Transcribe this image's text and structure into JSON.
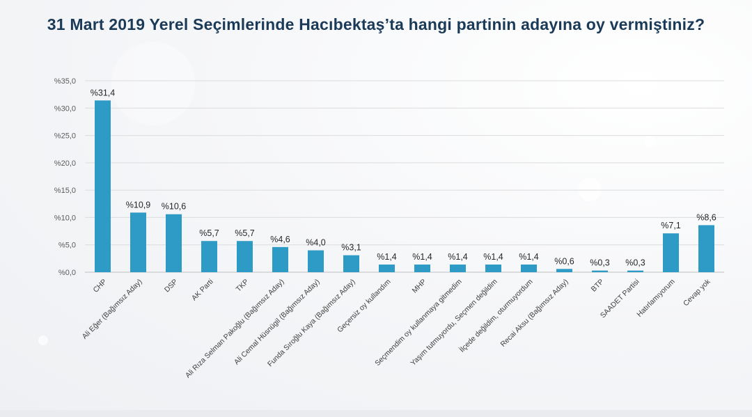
{
  "title": "31 Mart 2019 Yerel Seçimlerinde Hacıbektaş’ta hangi partinin adayına oy vermiştiniz?",
  "chart_data": {
    "type": "bar",
    "title": "31 Mart 2019 Yerel Seçimlerinde Hacıbektaş’ta hangi partinin adayına oy vermiştiniz?",
    "categories": [
      "CHP",
      "Ali Eğer (Bağımsız Aday)",
      "DSP",
      "AK Parti",
      "TKP",
      "Ali Rıza Selman Pakoğlu (Bağımsız Aday)",
      "Ali Cemal Hüsnügil (Bağımsız Aday)",
      "Funda Sıroğlu Kaya (Bağımsız Aday)",
      "Geçersiz oy kullandım",
      "MHP",
      "Seçmendim oy kullanmaya gitmedim",
      "Yaşım tutmuyordu, Seçmen değildim",
      "İlçede değildim, oturmuyordum",
      "Recai Aksu (Bağımsız Aday)",
      "BTP",
      "SAADET Partisi",
      "Hatırlamıyorum",
      "Cevap yok"
    ],
    "values": [
      31.4,
      10.9,
      10.6,
      5.7,
      5.7,
      4.6,
      4.0,
      3.1,
      1.4,
      1.4,
      1.4,
      1.4,
      1.4,
      0.6,
      0.3,
      0.3,
      7.1,
      8.6
    ],
    "value_labels": [
      "%31,4",
      "%10,9",
      "%10,6",
      "%5,7",
      "%5,7",
      "%4,6",
      "%4,0",
      "%3,1",
      "%1,4",
      "%1,4",
      "%1,4",
      "%1,4",
      "%1,4",
      "%0,6",
      "%0,3",
      "%0,3",
      "%7,1",
      "%8,6"
    ],
    "yticks": [
      0,
      5,
      10,
      15,
      20,
      25,
      30,
      35
    ],
    "ytick_labels": [
      "%0,0",
      "%5,0",
      "%10,0",
      "%15,0",
      "%20,0",
      "%25,0",
      "%30,0",
      "%35,0"
    ],
    "ylim": [
      0,
      35
    ],
    "xlabel": "",
    "ylabel": "",
    "grid": true,
    "legend": "none",
    "bar_color": "#2e9bc6"
  }
}
